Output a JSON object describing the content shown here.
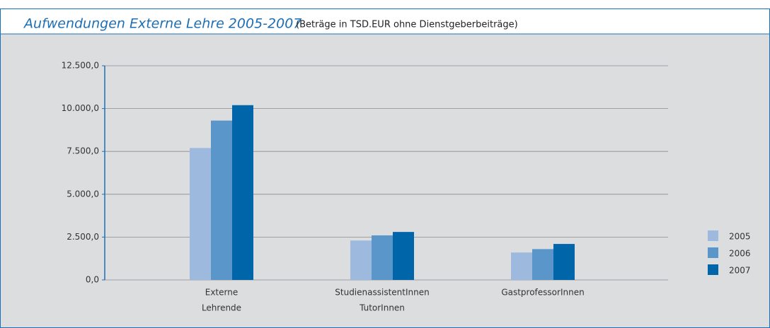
{
  "chart_data": {
    "type": "bar",
    "title": "Aufwendungen Externe Lehre 2005-2007",
    "subtitle": "(Beträge in TSD.EUR ohne Dienstgeberbeiträge)",
    "categories": [
      [
        "Externe",
        "Lehrende"
      ],
      [
        "StudienassistentInnen",
        "TutorInnen"
      ],
      [
        "GastprofessorInnen"
      ]
    ],
    "series": [
      {
        "name": "2005",
        "color": "#9db9de",
        "values": [
          7700,
          2300,
          1600
        ]
      },
      {
        "name": "2006",
        "color": "#5b96cb",
        "values": [
          9300,
          2600,
          1800
        ]
      },
      {
        "name": "2007",
        "color": "#0066a9",
        "values": [
          10200,
          2800,
          2100
        ]
      }
    ],
    "ylim": [
      0,
      12500
    ],
    "yticks": [
      {
        "value": 0,
        "label": "0,0"
      },
      {
        "value": 2500,
        "label": "2.500,0"
      },
      {
        "value": 5000,
        "label": "5.000,0"
      },
      {
        "value": 7500,
        "label": "7.500,0"
      },
      {
        "value": 10000,
        "label": "10.000,0"
      },
      {
        "value": 12500,
        "label": "12.500,0"
      }
    ],
    "grid": true,
    "legend": "right"
  }
}
